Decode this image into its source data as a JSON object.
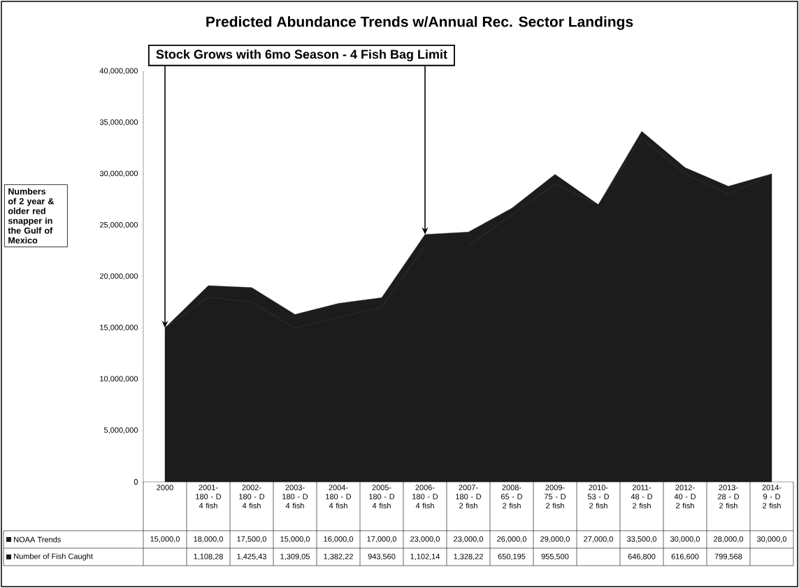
{
  "chart_data": {
    "type": "area",
    "title": "Predicted Abundance Trends w/Annual Rec. Sector Landings",
    "annotations": [
      "Stock Grows with 6mo Season - 4 Fish Bag Limit",
      "Numbers of 2 year & older red snapper in the Gulf of Mexico"
    ],
    "categories": [
      "2000",
      "2001- 180 - D 4 fish",
      "2002- 180 - D 4 fish",
      "2003- 180 - D 4 fish",
      "2004- 180 - D 4 fish",
      "2005- 180 - D 4 fish",
      "2006- 180 - D 4 fish",
      "2007- 180 - D 2 fish",
      "2008- 65 - D 2 fish",
      "2009- 75 - D 2 fish",
      "2010- 53 - D 2 fish",
      "2011- 48 - D 2 fish",
      "2012- 40 - D 2 fish",
      "2013- 28 - D 2 fish",
      "2014- 9 - D 2 fish"
    ],
    "stacked": true,
    "legend": "bottom",
    "ylim": [
      0,
      40000000
    ],
    "yticks": [
      {
        "value": 0,
        "label": "0"
      },
      {
        "value": 5000000,
        "label": "5,000,000"
      },
      {
        "value": 10000000,
        "label": "10,000,000"
      },
      {
        "value": 15000000,
        "label": "15,000,000"
      },
      {
        "value": 20000000,
        "label": "20,000,000"
      },
      {
        "value": 25000000,
        "label": "25,000,000"
      },
      {
        "value": 30000000,
        "label": "30,000,000"
      },
      {
        "value": 35000000,
        "label": "35,000,000"
      },
      {
        "value": 40000000,
        "label": "40,000,000"
      }
    ],
    "series": [
      {
        "name": "NOAA Trends",
        "color": "#1c1c1c",
        "values": [
          15000000,
          18000000,
          17500000,
          15000000,
          16000000,
          17000000,
          23000000,
          23000000,
          26000000,
          29000000,
          27000000,
          33500000,
          30000000,
          28000000,
          30000000
        ],
        "value_labels": [
          "15,000,0",
          "18,000,0",
          "17,500,0",
          "15,000,0",
          "16,000,0",
          "17,000,0",
          "23,000,0",
          "23,000,0",
          "26,000,0",
          "29,000,0",
          "27,000,0",
          "33,500,0",
          "30,000,0",
          "28,000,0",
          "30,000,0"
        ]
      },
      {
        "name": "Number of Fish Caught",
        "color": "#1c1c1c",
        "values": [
          0,
          1108280,
          1425430,
          1309050,
          1382220,
          943560,
          1102140,
          1328220,
          650195,
          955500,
          0,
          646800,
          616600,
          799568,
          0
        ],
        "value_labels": [
          null,
          "1,108,28",
          "1,425,43",
          "1,309,05",
          "1,382,22",
          "943,560",
          "1,102,14",
          "1,328,22",
          "650,195",
          "955,500",
          null,
          "646,800",
          "616,600",
          "799,568",
          null
        ]
      }
    ]
  }
}
